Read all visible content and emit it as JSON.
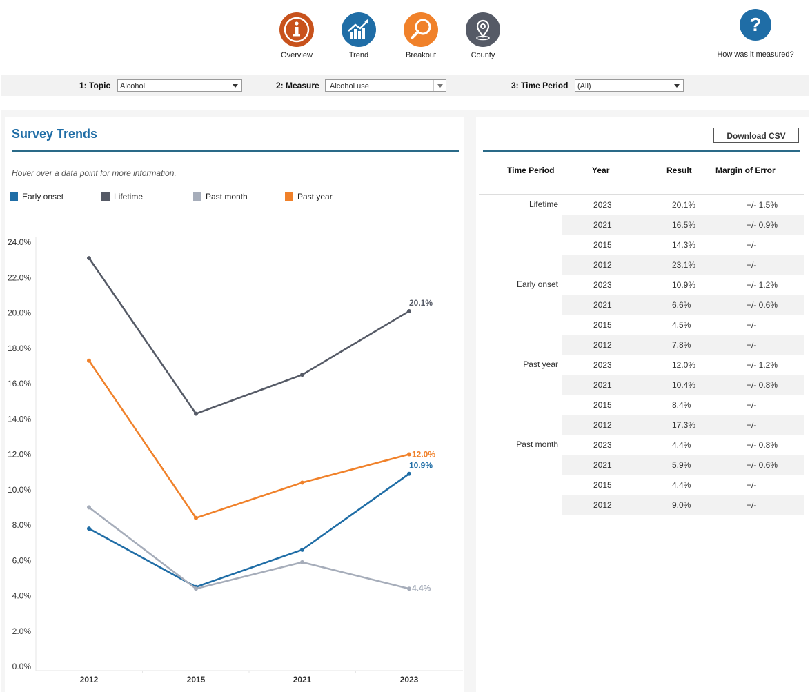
{
  "nav": {
    "items": [
      {
        "label": "Overview",
        "icon": "info-icon",
        "color": "#c8521c"
      },
      {
        "label": "Trend",
        "icon": "trend-chart-icon",
        "color": "#1f6da6"
      },
      {
        "label": "Breakout",
        "icon": "magnifier-icon",
        "color": "#f0812a"
      },
      {
        "label": "County",
        "icon": "map-pin-icon",
        "color": "#555a66"
      }
    ],
    "help_label": "How was it measured?",
    "help_glyph": "?"
  },
  "filters": {
    "topic": {
      "label": "1: Topic",
      "value": "Alcohol"
    },
    "measure": {
      "label": "2: Measure",
      "value": "Alcohol use"
    },
    "period": {
      "label": "3: Time Period",
      "value": "(All)"
    }
  },
  "chart_panel": {
    "title": "Survey Trends",
    "hint": "Hover over a data point for more information."
  },
  "chart_data": {
    "type": "line",
    "title": "Survey Trends",
    "x": [
      "2012",
      "2015",
      "2021",
      "2023"
    ],
    "ylim": [
      0,
      24
    ],
    "yticks": [
      "0.0%",
      "2.0%",
      "4.0%",
      "6.0%",
      "8.0%",
      "10.0%",
      "12.0%",
      "14.0%",
      "16.0%",
      "18.0%",
      "20.0%",
      "22.0%",
      "24.0%"
    ],
    "legend_position": "top",
    "series": [
      {
        "name": "Early onset",
        "color": "#1f6da6",
        "values": [
          7.8,
          4.5,
          6.6,
          10.9
        ],
        "end_label": "10.9%"
      },
      {
        "name": "Lifetime",
        "color": "#555a66",
        "values": [
          23.1,
          14.3,
          16.5,
          20.1
        ],
        "end_label": "20.1%"
      },
      {
        "name": "Past month",
        "color": "#a6adba",
        "values": [
          9.0,
          4.4,
          5.9,
          4.4
        ],
        "end_label": "4.4%"
      },
      {
        "name": "Past year",
        "color": "#f0812a",
        "values": [
          17.3,
          8.4,
          10.4,
          12.0
        ],
        "end_label": "12.0%"
      }
    ]
  },
  "table": {
    "download_label": "Download CSV",
    "headers": [
      "Time Period",
      "Year",
      "Result",
      "Margin of Error"
    ],
    "groups": [
      {
        "label": "Lifetime",
        "rows": [
          {
            "year": "2023",
            "result": "20.1%",
            "moe": "+/- 1.5%"
          },
          {
            "year": "2021",
            "result": "16.5%",
            "moe": "+/- 0.9%"
          },
          {
            "year": "2015",
            "result": "14.3%",
            "moe": "+/-"
          },
          {
            "year": "2012",
            "result": "23.1%",
            "moe": "+/-"
          }
        ]
      },
      {
        "label": "Early onset",
        "rows": [
          {
            "year": "2023",
            "result": "10.9%",
            "moe": "+/- 1.2%"
          },
          {
            "year": "2021",
            "result": "6.6%",
            "moe": "+/- 0.6%"
          },
          {
            "year": "2015",
            "result": "4.5%",
            "moe": "+/-"
          },
          {
            "year": "2012",
            "result": "7.8%",
            "moe": "+/-"
          }
        ]
      },
      {
        "label": "Past year",
        "rows": [
          {
            "year": "2023",
            "result": "12.0%",
            "moe": "+/- 1.2%"
          },
          {
            "year": "2021",
            "result": "10.4%",
            "moe": "+/- 0.8%"
          },
          {
            "year": "2015",
            "result": "8.4%",
            "moe": "+/-"
          },
          {
            "year": "2012",
            "result": "17.3%",
            "moe": "+/-"
          }
        ]
      },
      {
        "label": "Past month",
        "rows": [
          {
            "year": "2023",
            "result": "4.4%",
            "moe": "+/- 0.8%"
          },
          {
            "year": "2021",
            "result": "5.9%",
            "moe": "+/- 0.6%"
          },
          {
            "year": "2015",
            "result": "4.4%",
            "moe": "+/-"
          },
          {
            "year": "2012",
            "result": "9.0%",
            "moe": "+/-"
          }
        ]
      }
    ]
  }
}
